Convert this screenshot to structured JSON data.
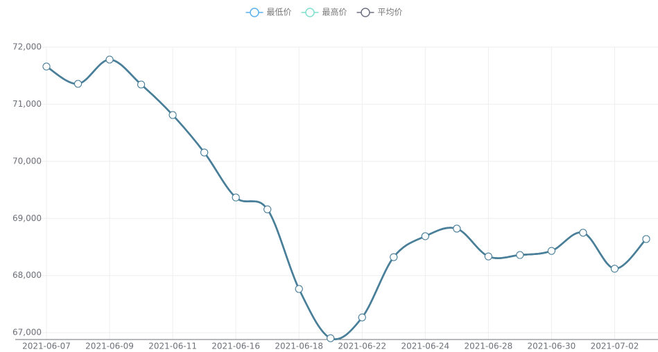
{
  "chart_data": {
    "type": "line",
    "categories": [
      "2021-06-07",
      null,
      "2021-06-09",
      null,
      "2021-06-11",
      null,
      "2021-06-16",
      null,
      "2021-06-18",
      null,
      "2021-06-22",
      null,
      "2021-06-24",
      null,
      "2021-06-28",
      null,
      "2021-06-30",
      null,
      "2021-07-02",
      null
    ],
    "series": [
      {
        "name": "最低价",
        "color": "#5ab1ef",
        "values": [
          71660,
          71357,
          71782,
          71345,
          70811,
          70155,
          69367,
          69160,
          67765,
          66903,
          67267,
          68323,
          68689,
          68822,
          68335,
          68360,
          68432,
          68750,
          68120,
          68640
        ]
      },
      {
        "name": "最高价",
        "color": "#7ee0cf",
        "values": [
          71660,
          71357,
          71782,
          71345,
          70811,
          70155,
          69367,
          69160,
          67765,
          66903,
          67267,
          68323,
          68689,
          68822,
          68335,
          68360,
          68432,
          68750,
          68120,
          68640
        ]
      },
      {
        "name": "平均价",
        "color": "#6e7083",
        "values": [
          71660,
          71357,
          71782,
          71345,
          70811,
          70155,
          69367,
          69160,
          67765,
          66903,
          67267,
          68323,
          68689,
          68822,
          68335,
          68360,
          68432,
          68750,
          68120,
          68640
        ]
      }
    ],
    "line_color": "#4a7f9a",
    "ylim": [
      66880,
      72000
    ],
    "yticks": [
      {
        "value": 67000,
        "label": "67,000"
      },
      {
        "value": 68000,
        "label": "68,000"
      },
      {
        "value": 69000,
        "label": "69,000"
      },
      {
        "value": 70000,
        "label": "70,000"
      },
      {
        "value": 71000,
        "label": "71,000"
      },
      {
        "value": 72000,
        "label": "72,000"
      }
    ],
    "grid": true,
    "smooth": true,
    "legend": "top"
  }
}
